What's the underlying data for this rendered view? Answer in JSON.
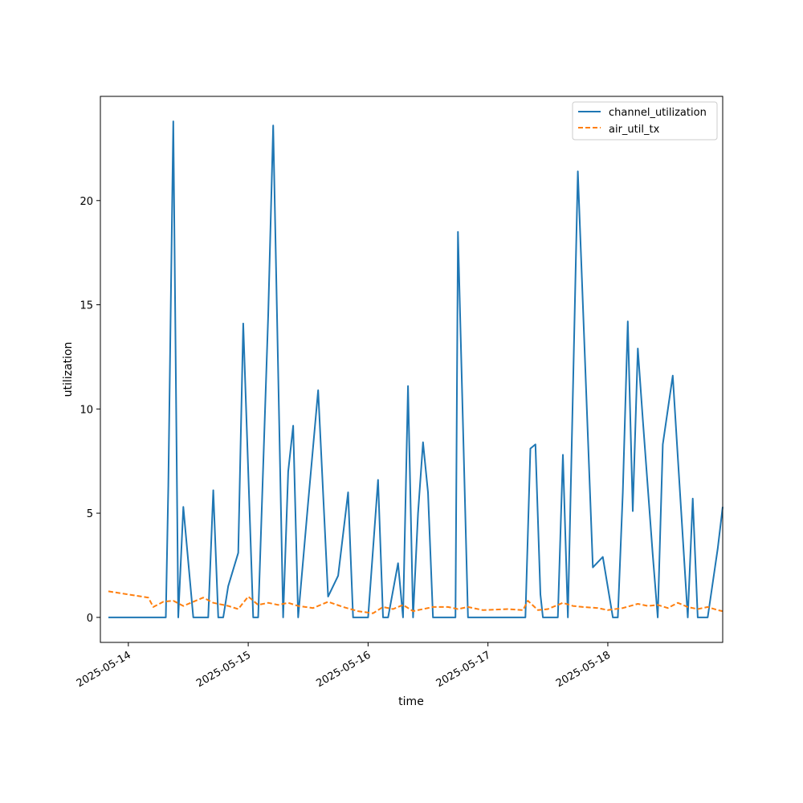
{
  "chart_data": {
    "type": "line",
    "title": "",
    "xlabel": "time",
    "ylabel": "utilization",
    "xlim": [
      "2025-05-13T18:24",
      "2025-05-18T23:00"
    ],
    "ylim": [
      -1.2,
      25.0
    ],
    "x_ticks": [
      "2025-05-14",
      "2025-05-15",
      "2025-05-16",
      "2025-05-17",
      "2025-05-18"
    ],
    "y_ticks": [
      0,
      5,
      10,
      15,
      20
    ],
    "grid": false,
    "legend_position": "top-right",
    "series": [
      {
        "name": "channel_utilization",
        "style": "solid",
        "color": "#1f77b4",
        "points": [
          [
            "2025-05-13T20:00",
            0
          ],
          [
            "2025-05-14T07:30",
            0
          ],
          [
            "2025-05-14T08:00",
            6.3
          ],
          [
            "2025-05-14T09:00",
            23.8
          ],
          [
            "2025-05-14T10:00",
            0
          ],
          [
            "2025-05-14T11:00",
            5.3
          ],
          [
            "2025-05-14T13:00",
            0
          ],
          [
            "2025-05-14T16:00",
            0
          ],
          [
            "2025-05-14T17:00",
            6.1
          ],
          [
            "2025-05-14T18:00",
            0
          ],
          [
            "2025-05-14T19:00",
            0
          ],
          [
            "2025-05-14T20:00",
            1.5
          ],
          [
            "2025-05-14T22:00",
            3.1
          ],
          [
            "2025-05-14T23:00",
            14.1
          ],
          [
            "2025-05-15T01:00",
            0
          ],
          [
            "2025-05-15T02:00",
            0
          ],
          [
            "2025-05-15T04:00",
            14.5
          ],
          [
            "2025-05-15T05:00",
            23.6
          ],
          [
            "2025-05-15T07:00",
            0
          ],
          [
            "2025-05-15T08:00",
            7.0
          ],
          [
            "2025-05-15T09:00",
            9.2
          ],
          [
            "2025-05-15T10:00",
            0
          ],
          [
            "2025-05-15T12:00",
            5.5
          ],
          [
            "2025-05-15T14:00",
            10.9
          ],
          [
            "2025-05-15T16:00",
            1.0
          ],
          [
            "2025-05-15T18:00",
            2.0
          ],
          [
            "2025-05-15T20:00",
            6.0
          ],
          [
            "2025-05-15T21:00",
            0
          ],
          [
            "2025-05-15T23:00",
            0
          ],
          [
            "2025-05-16T00:00",
            0
          ],
          [
            "2025-05-16T02:00",
            6.6
          ],
          [
            "2025-05-16T03:00",
            0
          ],
          [
            "2025-05-16T04:00",
            0
          ],
          [
            "2025-05-16T06:00",
            2.6
          ],
          [
            "2025-05-16T07:00",
            0
          ],
          [
            "2025-05-16T08:00",
            11.1
          ],
          [
            "2025-05-16T09:00",
            0
          ],
          [
            "2025-05-16T10:00",
            5.0
          ],
          [
            "2025-05-16T11:00",
            8.4
          ],
          [
            "2025-05-16T12:00",
            6.0
          ],
          [
            "2025-05-16T13:00",
            0
          ],
          [
            "2025-05-16T17:30",
            0
          ],
          [
            "2025-05-16T18:00",
            18.5
          ],
          [
            "2025-05-16T20:00",
            0
          ],
          [
            "2025-05-17T07:30",
            0
          ],
          [
            "2025-05-17T08:30",
            8.1
          ],
          [
            "2025-05-17T09:30",
            8.3
          ],
          [
            "2025-05-17T10:30",
            1.1
          ],
          [
            "2025-05-17T11:00",
            0
          ],
          [
            "2025-05-17T12:00",
            0
          ],
          [
            "2025-05-17T14:00",
            0
          ],
          [
            "2025-05-17T15:00",
            7.8
          ],
          [
            "2025-05-17T16:00",
            0
          ],
          [
            "2025-05-17T18:00",
            21.4
          ],
          [
            "2025-05-17T21:00",
            2.4
          ],
          [
            "2025-05-17T23:00",
            2.9
          ],
          [
            "2025-05-18T01:00",
            0
          ],
          [
            "2025-05-18T02:00",
            0
          ],
          [
            "2025-05-18T03:00",
            6.0
          ],
          [
            "2025-05-18T04:00",
            14.2
          ],
          [
            "2025-05-18T05:00",
            5.1
          ],
          [
            "2025-05-18T06:00",
            12.9
          ],
          [
            "2025-05-18T07:00",
            9.5
          ],
          [
            "2025-05-18T09:00",
            3.0
          ],
          [
            "2025-05-18T10:00",
            0
          ],
          [
            "2025-05-18T11:00",
            8.3
          ],
          [
            "2025-05-18T13:00",
            11.6
          ],
          [
            "2025-05-18T16:00",
            0
          ],
          [
            "2025-05-18T17:00",
            5.7
          ],
          [
            "2025-05-18T18:00",
            0
          ],
          [
            "2025-05-18T20:00",
            0
          ],
          [
            "2025-05-18T22:00",
            3.3
          ],
          [
            "2025-05-18T23:00",
            5.3
          ]
        ]
      },
      {
        "name": "air_util_tx",
        "style": "dashed",
        "color": "#ff7f0e",
        "points": [
          [
            "2025-05-13T20:00",
            1.25
          ],
          [
            "2025-05-14T00:00",
            1.1
          ],
          [
            "2025-05-14T04:00",
            0.95
          ],
          [
            "2025-05-14T05:00",
            0.5
          ],
          [
            "2025-05-14T07:00",
            0.75
          ],
          [
            "2025-05-14T09:00",
            0.8
          ],
          [
            "2025-05-14T11:00",
            0.55
          ],
          [
            "2025-05-14T15:00",
            0.95
          ],
          [
            "2025-05-14T17:00",
            0.7
          ],
          [
            "2025-05-14T20:00",
            0.55
          ],
          [
            "2025-05-14T22:00",
            0.4
          ],
          [
            "2025-05-15T00:00",
            1.0
          ],
          [
            "2025-05-15T02:00",
            0.6
          ],
          [
            "2025-05-15T04:00",
            0.7
          ],
          [
            "2025-05-15T06:00",
            0.6
          ],
          [
            "2025-05-15T08:00",
            0.7
          ],
          [
            "2025-05-15T10:00",
            0.55
          ],
          [
            "2025-05-15T13:00",
            0.45
          ],
          [
            "2025-05-15T16:00",
            0.75
          ],
          [
            "2025-05-15T19:00",
            0.5
          ],
          [
            "2025-05-15T22:00",
            0.3
          ],
          [
            "2025-05-16T01:00",
            0.2
          ],
          [
            "2025-05-16T03:00",
            0.5
          ],
          [
            "2025-05-16T05:00",
            0.4
          ],
          [
            "2025-05-16T07:00",
            0.6
          ],
          [
            "2025-05-16T09:00",
            0.3
          ],
          [
            "2025-05-16T11:00",
            0.4
          ],
          [
            "2025-05-16T13:00",
            0.5
          ],
          [
            "2025-05-16T16:00",
            0.5
          ],
          [
            "2025-05-16T18:00",
            0.4
          ],
          [
            "2025-05-16T20:00",
            0.5
          ],
          [
            "2025-05-16T23:00",
            0.35
          ],
          [
            "2025-05-17T04:00",
            0.4
          ],
          [
            "2025-05-17T07:00",
            0.35
          ],
          [
            "2025-05-17T08:00",
            0.8
          ],
          [
            "2025-05-17T10:00",
            0.35
          ],
          [
            "2025-05-17T12:00",
            0.4
          ],
          [
            "2025-05-17T15:00",
            0.7
          ],
          [
            "2025-05-17T17:00",
            0.55
          ],
          [
            "2025-05-17T19:00",
            0.5
          ],
          [
            "2025-05-17T22:00",
            0.45
          ],
          [
            "2025-05-18T00:00",
            0.35
          ],
          [
            "2025-05-18T03:00",
            0.45
          ],
          [
            "2025-05-18T06:00",
            0.65
          ],
          [
            "2025-05-18T08:00",
            0.55
          ],
          [
            "2025-05-18T10:00",
            0.6
          ],
          [
            "2025-05-18T12:00",
            0.45
          ],
          [
            "2025-05-18T14:00",
            0.7
          ],
          [
            "2025-05-18T16:00",
            0.5
          ],
          [
            "2025-05-18T18:00",
            0.4
          ],
          [
            "2025-05-18T20:00",
            0.5
          ],
          [
            "2025-05-18T22:00",
            0.35
          ],
          [
            "2025-05-18T23:00",
            0.3
          ]
        ]
      }
    ]
  }
}
